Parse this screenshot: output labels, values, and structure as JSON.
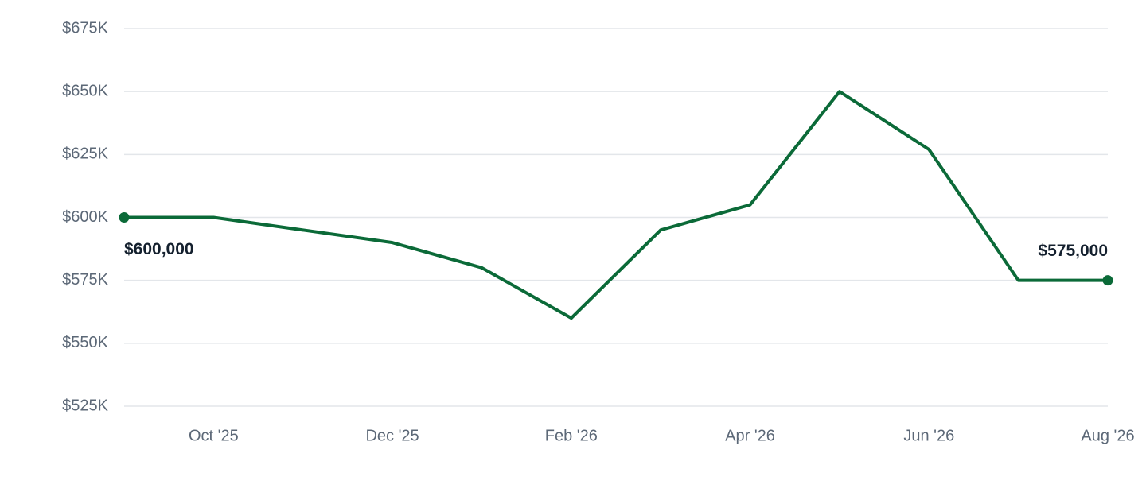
{
  "chart_data": {
    "type": "line",
    "categories": [
      null,
      "Oct '25",
      null,
      "Dec '25",
      null,
      "Feb '26",
      null,
      "Apr '26",
      null,
      "Jun '26",
      null,
      "Aug '26"
    ],
    "values": [
      600000,
      600000,
      595000,
      590000,
      580000,
      560000,
      595000,
      605000,
      650000,
      627000,
      575000,
      575000
    ],
    "value_labels": [
      "$600,000",
      null,
      null,
      null,
      null,
      null,
      null,
      null,
      null,
      null,
      null,
      "$575,000"
    ],
    "color": "#0b6a38",
    "ylim": [
      525000,
      675000
    ],
    "yticks": [
      {
        "value": 525000,
        "label": "$525K"
      },
      {
        "value": 550000,
        "label": "$550K"
      },
      {
        "value": 575000,
        "label": "$575K"
      },
      {
        "value": 600000,
        "label": "$600K"
      },
      {
        "value": 625000,
        "label": "$625K"
      },
      {
        "value": 650000,
        "label": "$650K"
      },
      {
        "value": 675000,
        "label": "$675K"
      }
    ],
    "grid": true
  }
}
